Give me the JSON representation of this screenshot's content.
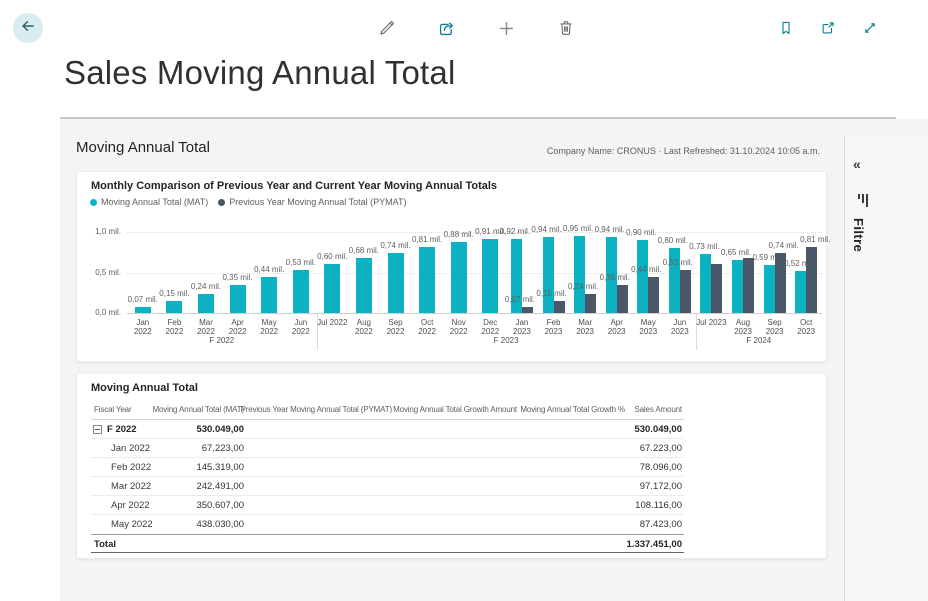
{
  "page": {
    "title": "Sales Moving Annual Total"
  },
  "report": {
    "title": "Moving Annual Total",
    "meta": "Company Name: CRONUS · Last Refreshed: 31.10.2024 10:05 a.m."
  },
  "filter_pane": {
    "collapse_icon": "«",
    "label": "Filtre"
  },
  "chart_data": {
    "type": "grouped-bar",
    "title": "Monthly Comparison of Previous Year and Current Year Moving Annual Totals",
    "unit": "mil.",
    "ylim": [
      0,
      1.0
    ],
    "y_ticks": [
      "1,0 mil.",
      "0,5 mil.",
      "0,0 mil."
    ],
    "series": [
      {
        "name": "Moving Annual Total (MAT)",
        "color": "#0CB2C1"
      },
      {
        "name": "Previous Year Moving Annual Total (PYMAT)",
        "color": "#4A5767"
      }
    ],
    "months": [
      {
        "m": "Jan",
        "y": "2022",
        "mat": 0.07,
        "mat_label": "0,07 mil."
      },
      {
        "m": "Feb",
        "y": "2022",
        "mat": 0.15,
        "mat_label": "0,15 mil."
      },
      {
        "m": "Mar",
        "y": "2022",
        "mat": 0.24,
        "mat_label": "0,24 mil."
      },
      {
        "m": "Apr",
        "y": "2022",
        "mat": 0.35,
        "mat_label": "0,35 mil."
      },
      {
        "m": "May",
        "y": "2022",
        "mat": 0.44,
        "mat_label": "0,44 mil."
      },
      {
        "m": "Jun",
        "y": "2022",
        "mat": 0.53,
        "mat_label": "0,53 mil."
      },
      {
        "m": "Jul 2022",
        "y": "",
        "mat": 0.6,
        "mat_label": "0,60 mil."
      },
      {
        "m": "Aug",
        "y": "2022",
        "mat": 0.68,
        "mat_label": "0,68 mil."
      },
      {
        "m": "Sep",
        "y": "2022",
        "mat": 0.74,
        "mat_label": "0,74 mil."
      },
      {
        "m": "Oct",
        "y": "2022",
        "mat": 0.81,
        "mat_label": "0,81 mil."
      },
      {
        "m": "Nov",
        "y": "2022",
        "mat": 0.88,
        "mat_label": "0,88 mil."
      },
      {
        "m": "Dec",
        "y": "2022",
        "mat": 0.91,
        "mat_label": "0,91 mil."
      },
      {
        "m": "Jan",
        "y": "2023",
        "mat": 0.92,
        "mat_label": "0,92 mil.",
        "pymat": 0.07,
        "pymat_label": "0,07 mil."
      },
      {
        "m": "Feb",
        "y": "2023",
        "mat": 0.94,
        "mat_label": "0,94 mil.",
        "pymat": 0.15,
        "pymat_label": "0,15 mil."
      },
      {
        "m": "Mar",
        "y": "2023",
        "mat": 0.95,
        "mat_label": "0,95 mil.",
        "pymat": 0.24,
        "pymat_label": "0,24 mil."
      },
      {
        "m": "Apr",
        "y": "2023",
        "mat": 0.94,
        "mat_label": "0,94 mil.",
        "pymat": 0.35,
        "pymat_label": "0,35 mil."
      },
      {
        "m": "May",
        "y": "2023",
        "mat": 0.9,
        "mat_label": "0,90 mil.",
        "pymat": 0.44,
        "pymat_label": "0,44 mil."
      },
      {
        "m": "Jun",
        "y": "2023",
        "mat": 0.8,
        "mat_label": "0,80 mil.",
        "pymat": 0.53,
        "pymat_label": "0,53 mil."
      },
      {
        "m": "Jul 2023",
        "y": "",
        "mat": 0.73,
        "mat_label": "0,73 mil.",
        "pymat": 0.6,
        "pymat_label": ""
      },
      {
        "m": "Aug",
        "y": "2023",
        "mat": 0.65,
        "mat_label": "0,65 mil.",
        "pymat": 0.68,
        "pymat_label": ""
      },
      {
        "m": "Sep",
        "y": "2023",
        "mat": 0.59,
        "mat_label": "0,59 mil.",
        "pymat": 0.74,
        "pymat_label": "0,74 mil."
      },
      {
        "m": "Oct",
        "y": "2023",
        "mat": 0.52,
        "mat_label": "0,52 mil.",
        "pymat": 0.81,
        "pymat_label": "0,81 mil."
      }
    ],
    "groups": [
      {
        "label": "F 2022",
        "start": 0,
        "end": 5
      },
      {
        "label": "F 2023",
        "start": 6,
        "end": 17
      },
      {
        "label": "F 2024",
        "start": 18,
        "end": 21
      }
    ]
  },
  "table": {
    "title": "Moving Annual Total",
    "columns": [
      "Fiscal Year",
      "Moving Annual Total (MAT)",
      "Previous Year Moving Annual Total (PYMAT)",
      "Moving Annual Total Growth Amount",
      "Moving Annual Total Growth %",
      "Sales Amount"
    ],
    "rows": [
      {
        "type": "group",
        "fiscal": "F 2022",
        "cells": [
          "530.049,00",
          "",
          "",
          "",
          "530.049,00"
        ]
      },
      {
        "type": "child",
        "fiscal": "Jan 2022",
        "cells": [
          "67.223,00",
          "",
          "",
          "",
          "67.223,00"
        ]
      },
      {
        "type": "child",
        "fiscal": "Feb 2022",
        "cells": [
          "145.319,00",
          "",
          "",
          "",
          "78.096,00"
        ]
      },
      {
        "type": "child",
        "fiscal": "Mar 2022",
        "cells": [
          "242.491,00",
          "",
          "",
          "",
          "97.172,00"
        ]
      },
      {
        "type": "child",
        "fiscal": "Apr 2022",
        "cells": [
          "350.607,00",
          "",
          "",
          "",
          "108.116,00"
        ]
      },
      {
        "type": "child",
        "fiscal": "May 2022",
        "cells": [
          "438.030,00",
          "",
          "",
          "",
          "87.423,00"
        ]
      },
      {
        "type": "total",
        "fiscal": "Total",
        "cells": [
          "",
          "",
          "",
          "",
          "1.337.451,00"
        ]
      }
    ]
  }
}
